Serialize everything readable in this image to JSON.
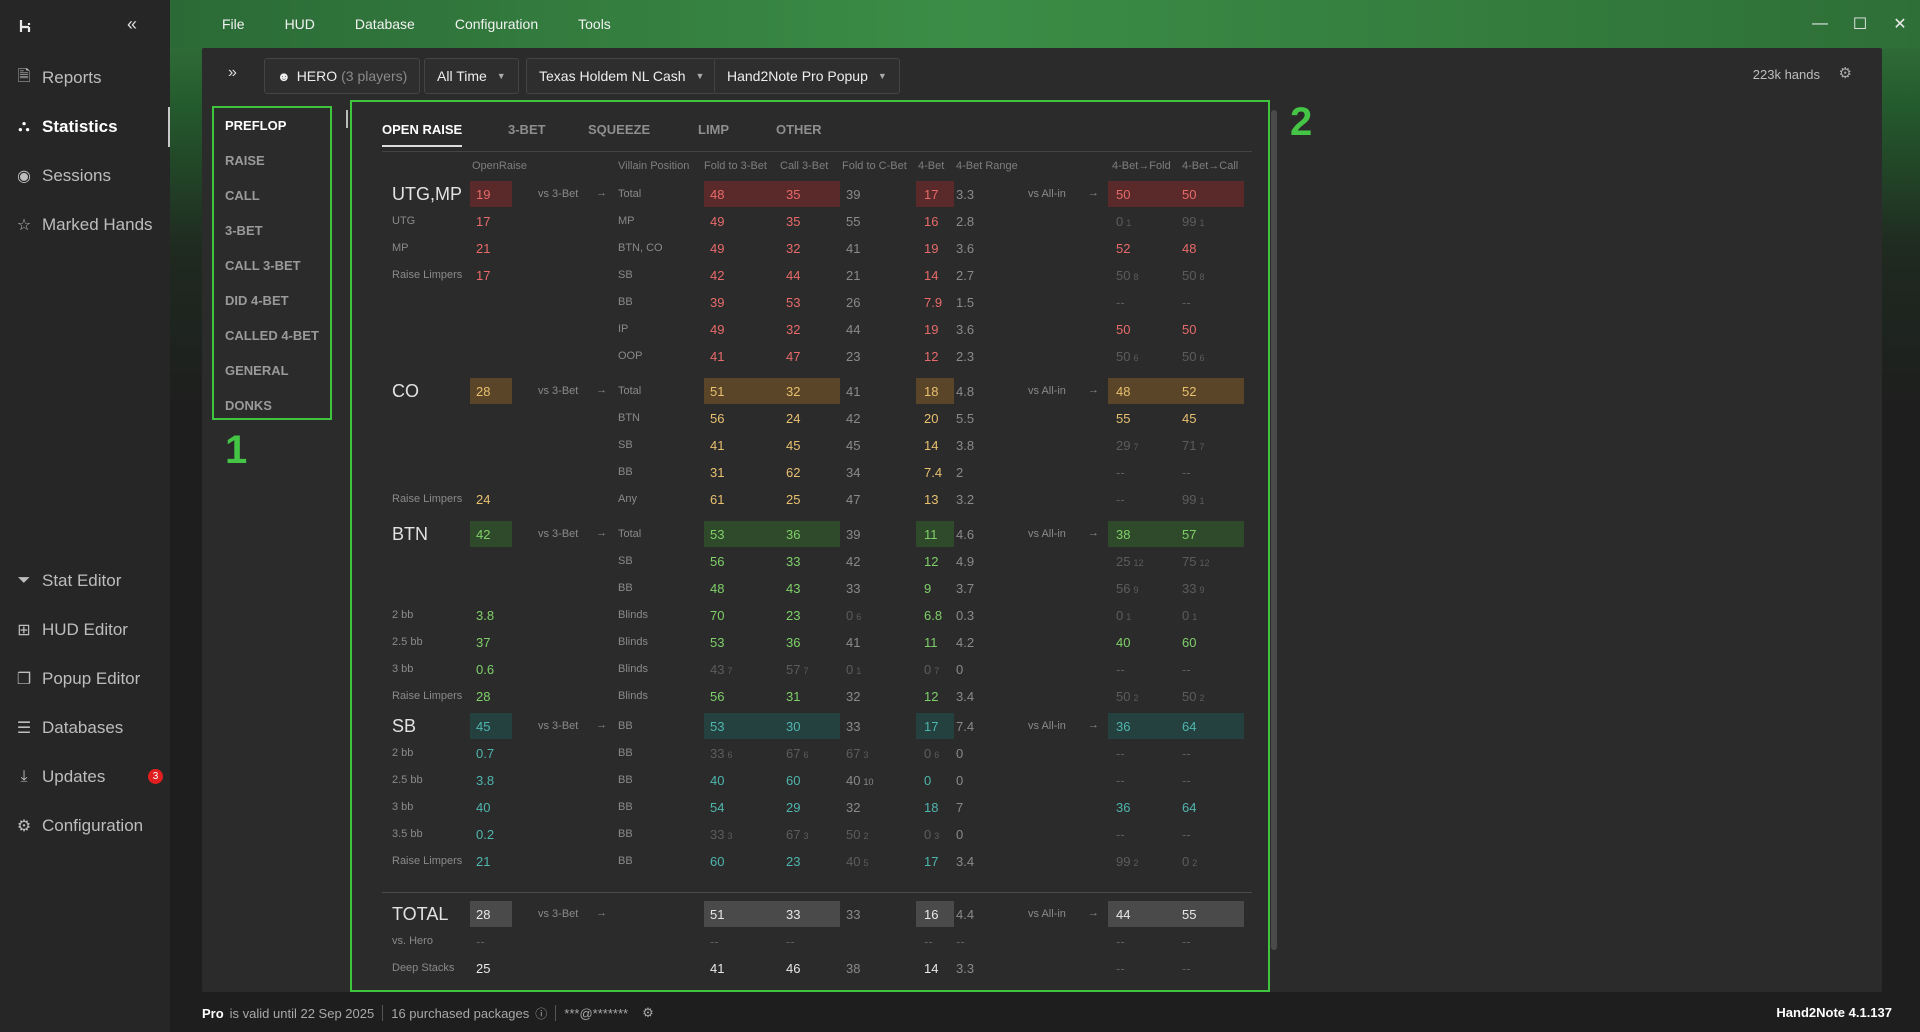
{
  "sidebar": {
    "items": [
      {
        "label": "Reports",
        "icon": "file-icon"
      },
      {
        "label": "Statistics",
        "icon": "share-icon"
      },
      {
        "label": "Sessions",
        "icon": "broadcast-icon"
      },
      {
        "label": "Marked Hands",
        "icon": "star-list-icon"
      },
      {
        "label": "Stat Editor",
        "icon": "filter-icon"
      },
      {
        "label": "HUD Editor",
        "icon": "layout-icon"
      },
      {
        "label": "Popup Editor",
        "icon": "windows-icon"
      },
      {
        "label": "Databases",
        "icon": "database-icon"
      },
      {
        "label": "Updates",
        "icon": "download-icon",
        "badge": "3"
      },
      {
        "label": "Configuration",
        "icon": "gear-icon"
      }
    ]
  },
  "menu": [
    "File",
    "HUD",
    "Database",
    "Configuration",
    "Tools"
  ],
  "toolbar": {
    "player": "HERO",
    "players_count": "(3 players)",
    "time": "All Time",
    "game": "Texas Holdem NL Cash",
    "popup": "Hand2Note Pro Popup",
    "hands": "223k hands"
  },
  "categories": [
    "PREFLOP",
    "RAISE",
    "CALL",
    "3-BET",
    "CALL 3-BET",
    "DID 4-BET",
    "CALLED 4-BET",
    "GENERAL",
    "DONKS"
  ],
  "labels": {
    "one": "1",
    "two": "2"
  },
  "tabs": [
    "OPEN RAISE",
    "3-BET",
    "SQUEEZE",
    "LIMP",
    "OTHER"
  ],
  "headers": {
    "openraise": "OpenRaise",
    "villain": "Villain Position",
    "f3b": "Fold to 3-Bet",
    "c3b": "Call 3-Bet",
    "fcb": "Fold to C-Bet",
    "fb": "4-Bet",
    "fbr": "4-Bet Range",
    "fbf": "4-Bet→Fold",
    "fbc": "4-Bet→Call"
  },
  "vs3bet": "vs 3-Bet",
  "vsallin": "vs All-in",
  "arrow": "→",
  "groups": {
    "utg": {
      "name": "UTG,MP",
      "rows": [
        {
          "sub": "",
          "or": "19",
          "vp": "Total",
          "f3b": "48",
          "c3b": "35",
          "fcb": "39",
          "fb": "17",
          "fbr": "3.3",
          "fbf": "50",
          "fbc": "50"
        },
        {
          "sub": "UTG",
          "or": "17",
          "vp": "MP",
          "f3b": "49",
          "c3b": "35",
          "fcb": "55",
          "fb": "16",
          "fbr": "2.8",
          "fbf": "0",
          "fbfs": "1",
          "fbc": "99",
          "fbcs": "1"
        },
        {
          "sub": "MP",
          "or": "21",
          "vp": "BTN, CO",
          "f3b": "49",
          "c3b": "32",
          "fcb": "41",
          "fb": "19",
          "fbr": "3.6",
          "fbf": "52",
          "fbc": "48"
        },
        {
          "sub": "Raise Limpers",
          "or": "17",
          "vp": "SB",
          "f3b": "42",
          "c3b": "44",
          "fcb": "21",
          "fb": "14",
          "fbr": "2.7",
          "fbf": "50",
          "fbfs": "8",
          "fbc": "50",
          "fbcs": "8"
        },
        {
          "sub": "",
          "or": "",
          "vp": "BB",
          "f3b": "39",
          "c3b": "53",
          "fcb": "26",
          "fb": "7.9",
          "fbr": "1.5",
          "fbf": "--",
          "fbc": "--"
        },
        {
          "sub": "",
          "or": "",
          "vp": "IP",
          "f3b": "49",
          "c3b": "32",
          "fcb": "44",
          "fb": "19",
          "fbr": "3.6",
          "fbf": "50",
          "fbc": "50"
        },
        {
          "sub": "",
          "or": "",
          "vp": "OOP",
          "f3b": "41",
          "c3b": "47",
          "fcb": "23",
          "fb": "12",
          "fbr": "2.3",
          "fbf": "50",
          "fbfs": "6",
          "fbc": "50",
          "fbcs": "6"
        }
      ]
    },
    "co": {
      "name": "CO",
      "rows": [
        {
          "sub": "",
          "or": "28",
          "vp": "Total",
          "f3b": "51",
          "c3b": "32",
          "fcb": "41",
          "fb": "18",
          "fbr": "4.8",
          "fbf": "48",
          "fbc": "52"
        },
        {
          "sub": "",
          "or": "",
          "vp": "BTN",
          "f3b": "56",
          "c3b": "24",
          "fcb": "42",
          "fb": "20",
          "fbr": "5.5",
          "fbf": "55",
          "fbc": "45"
        },
        {
          "sub": "",
          "or": "",
          "vp": "SB",
          "f3b": "41",
          "c3b": "45",
          "fcb": "45",
          "fb": "14",
          "fbr": "3.8",
          "fbf": "29",
          "fbfs": "7",
          "fbc": "71",
          "fbcs": "7"
        },
        {
          "sub": "",
          "or": "",
          "vp": "BB",
          "f3b": "31",
          "c3b": "62",
          "fcb": "34",
          "fb": "7.4",
          "fbr": "2",
          "fbf": "--",
          "fbc": "--"
        },
        {
          "sub": "Raise Limpers",
          "or": "24",
          "vp": "Any",
          "f3b": "61",
          "c3b": "25",
          "fcb": "47",
          "fb": "13",
          "fbr": "3.2",
          "fbf": "--",
          "fbc": "99",
          "fbcs": "1"
        }
      ]
    },
    "btn": {
      "name": "BTN",
      "rows": [
        {
          "sub": "",
          "or": "42",
          "vp": "Total",
          "f3b": "53",
          "c3b": "36",
          "fcb": "39",
          "fb": "11",
          "fbr": "4.6",
          "fbf": "38",
          "fbc": "57"
        },
        {
          "sub": "",
          "or": "",
          "vp": "SB",
          "f3b": "56",
          "c3b": "33",
          "fcb": "42",
          "fb": "12",
          "fbr": "4.9",
          "fbf": "25",
          "fbfs": "12",
          "fbc": "75",
          "fbcs": "12"
        },
        {
          "sub": "",
          "or": "",
          "vp": "BB",
          "f3b": "48",
          "c3b": "43",
          "fcb": "33",
          "fb": "9",
          "fbr": "3.7",
          "fbf": "56",
          "fbfs": "9",
          "fbc": "33",
          "fbcs": "9"
        },
        {
          "sub": "2 bb",
          "or": "3.8",
          "vp": "Blinds",
          "f3b": "70",
          "c3b": "23",
          "fcb": "0",
          "fcbs": "6",
          "fb": "6.8",
          "fbr": "0.3",
          "fbf": "0",
          "fbfs": "1",
          "fbc": "0",
          "fbcs": "1"
        },
        {
          "sub": "2.5 bb",
          "or": "37",
          "vp": "Blinds",
          "f3b": "53",
          "c3b": "36",
          "fcb": "41",
          "fb": "11",
          "fbr": "4.2",
          "fbf": "40",
          "fbc": "60"
        },
        {
          "sub": "3 bb",
          "or": "0.6",
          "vp": "Blinds",
          "f3b": "43",
          "f3bs": "7",
          "c3b": "57",
          "c3bs": "7",
          "fcb": "0",
          "fcbs": "1",
          "fb": "0",
          "fbs": "7",
          "fbr": "0",
          "fbf": "--",
          "fbc": "--"
        },
        {
          "sub": "Raise Limpers",
          "or": "28",
          "vp": "Blinds",
          "f3b": "56",
          "c3b": "31",
          "fcb": "32",
          "fb": "12",
          "fbr": "3.4",
          "fbf": "50",
          "fbfs": "2",
          "fbc": "50",
          "fbcs": "2"
        }
      ]
    },
    "sb": {
      "name": "SB",
      "rows": [
        {
          "sub": "",
          "or": "45",
          "vp": "BB",
          "f3b": "53",
          "c3b": "30",
          "fcb": "33",
          "fb": "17",
          "fbr": "7.4",
          "fbf": "36",
          "fbc": "64"
        },
        {
          "sub": "2 bb",
          "or": "0.7",
          "vp": "BB",
          "f3b": "33",
          "f3bs": "6",
          "c3b": "67",
          "c3bs": "6",
          "fcb": "67",
          "fcbs": "3",
          "fb": "0",
          "fbs": "6",
          "fbr": "0",
          "fbf": "--",
          "fbc": "--"
        },
        {
          "sub": "2.5 bb",
          "or": "3.8",
          "vp": "BB",
          "f3b": "40",
          "c3b": "60",
          "fcb": "40",
          "fcbsw": "10",
          "fb": "0",
          "fbr": "0",
          "fbf": "--",
          "fbc": "--"
        },
        {
          "sub": "3 bb",
          "or": "40",
          "vp": "BB",
          "f3b": "54",
          "c3b": "29",
          "fcb": "32",
          "fb": "18",
          "fbr": "7",
          "fbf": "36",
          "fbc": "64"
        },
        {
          "sub": "3.5 bb",
          "or": "0.2",
          "vp": "BB",
          "f3b": "33",
          "f3bs": "3",
          "c3b": "67",
          "c3bs": "3",
          "fcb": "50",
          "fcbs": "2",
          "fb": "0",
          "fbs": "3",
          "fbr": "0",
          "fbf": "--",
          "fbc": "--"
        },
        {
          "sub": "Raise Limpers",
          "or": "21",
          "vp": "BB",
          "f3b": "60",
          "c3b": "23",
          "fcb": "40",
          "fcbs": "5",
          "fb": "17",
          "fbr": "3.4",
          "fbf": "99",
          "fbfs": "2",
          "fbc": "0",
          "fbcs": "2"
        }
      ]
    },
    "total": {
      "name": "TOTAL",
      "rows": [
        {
          "sub": "",
          "or": "28",
          "vp": "",
          "f3b": "51",
          "c3b": "33",
          "fcb": "33",
          "fb": "16",
          "fbr": "4.4",
          "fbf": "44",
          "fbc": "55"
        },
        {
          "sub": "vs. Hero",
          "or": "--",
          "vp": "",
          "f3b": "--",
          "c3b": "--",
          "fcb": "",
          "fb": "--",
          "fbr": "--",
          "fbf": "--",
          "fbc": "--"
        },
        {
          "sub": "Deep Stacks",
          "or": "25",
          "vp": "",
          "f3b": "41",
          "c3b": "46",
          "fcb": "38",
          "fb": "14",
          "fbr": "3.3",
          "fbf": "--",
          "fbc": "--"
        }
      ]
    }
  },
  "colors": {
    "utg": "#e86a6a",
    "utg_hl": "#5a2a2a",
    "co": "#e8c070",
    "co_hl": "#5a4528",
    "btn": "#7fd06a",
    "btn_hl": "#2f4a2a",
    "sb": "#4fb6ae",
    "sb_hl": "#24403f",
    "total": "#e8e8e8",
    "total_hl": "#4a4a4a"
  },
  "status": {
    "plan": "Pro",
    "valid": "is valid until 22 Sep 2025",
    "packages": "16 purchased packages",
    "user": "***@*******",
    "version": "Hand2Note 4.1.137"
  }
}
